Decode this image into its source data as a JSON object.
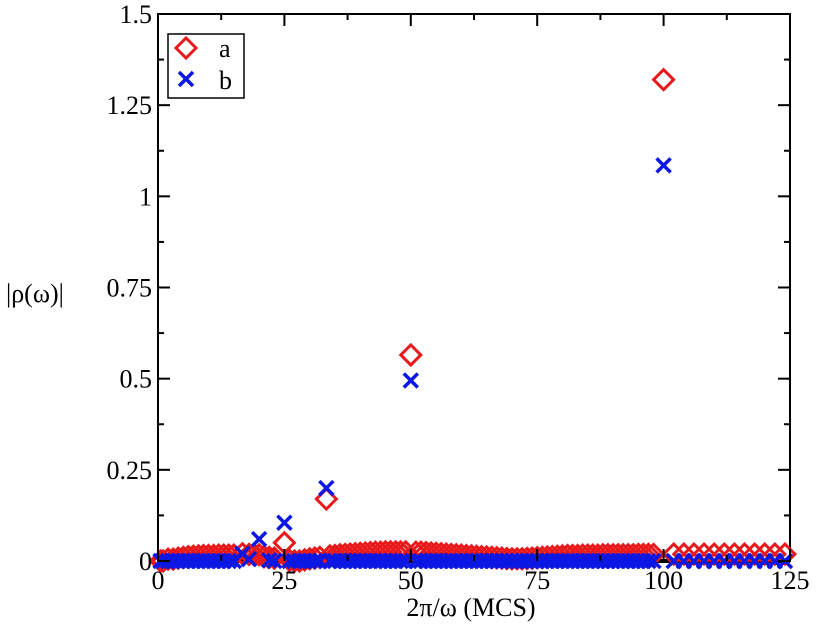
{
  "chart_data": {
    "type": "scatter",
    "title": "",
    "xlabel": "2π/ω (MCS)",
    "ylabel": "|ρ(ω)|",
    "xlim": [
      0,
      125
    ],
    "ylim": [
      0,
      1.5
    ],
    "xticks": [
      0,
      25,
      50,
      75,
      100,
      125
    ],
    "xtick_labels": [
      "0",
      "25",
      "50",
      "75",
      "100",
      "125"
    ],
    "yticks": [
      0,
      0.25,
      0.5,
      0.75,
      1,
      1.25,
      1.5
    ],
    "ytick_labels": [
      "0",
      "0.25",
      "0.5",
      "0.75",
      "1",
      "1.25",
      "1.5"
    ],
    "grid": false,
    "legend_position": "top-left",
    "series": [
      {
        "name": "a",
        "marker": "diamond",
        "color": "#e8191b",
        "points": [
          [
            0.5,
            0.0
          ],
          [
            1,
            0.0
          ],
          [
            2,
            0.005
          ],
          [
            3,
            0.005
          ],
          [
            4,
            0.008
          ],
          [
            5,
            0.01
          ],
          [
            6,
            0.012
          ],
          [
            7,
            0.013
          ],
          [
            8,
            0.014
          ],
          [
            9,
            0.015
          ],
          [
            10,
            0.015
          ],
          [
            11,
            0.015
          ],
          [
            12,
            0.016
          ],
          [
            13,
            0.016
          ],
          [
            14,
            0.016
          ],
          [
            15,
            0.016
          ],
          [
            16.7,
            0.02
          ],
          [
            18,
            0.018
          ],
          [
            19,
            0.017
          ],
          [
            20,
            0.017
          ],
          [
            21,
            0.012
          ],
          [
            22,
            0.01
          ],
          [
            23,
            0.008
          ],
          [
            25,
            0.05
          ],
          [
            26,
            0.002
          ],
          [
            27,
            0.0
          ],
          [
            28,
            0.0
          ],
          [
            29,
            0.003
          ],
          [
            30,
            0.006
          ],
          [
            31,
            0.008
          ],
          [
            32,
            0.01
          ],
          [
            33.3,
            0.17
          ],
          [
            34,
            0.014
          ],
          [
            35,
            0.015
          ],
          [
            36,
            0.017
          ],
          [
            37,
            0.018
          ],
          [
            38,
            0.019
          ],
          [
            39,
            0.02
          ],
          [
            40,
            0.021
          ],
          [
            41,
            0.022
          ],
          [
            42,
            0.023
          ],
          [
            43,
            0.024
          ],
          [
            44,
            0.024
          ],
          [
            45,
            0.025
          ],
          [
            46,
            0.025
          ],
          [
            47,
            0.025
          ],
          [
            48,
            0.025
          ],
          [
            49,
            0.025
          ],
          [
            50,
            0.565
          ],
          [
            51,
            0.024
          ],
          [
            52,
            0.024
          ],
          [
            53,
            0.023
          ],
          [
            54,
            0.022
          ],
          [
            55,
            0.021
          ],
          [
            56,
            0.02
          ],
          [
            57,
            0.019
          ],
          [
            58,
            0.018
          ],
          [
            59,
            0.017
          ],
          [
            60,
            0.016
          ],
          [
            61,
            0.015
          ],
          [
            62,
            0.014
          ],
          [
            63,
            0.013
          ],
          [
            64,
            0.012
          ],
          [
            65,
            0.011
          ],
          [
            66,
            0.01
          ],
          [
            67,
            0.009
          ],
          [
            68,
            0.008
          ],
          [
            69,
            0.007
          ],
          [
            70,
            0.006
          ],
          [
            71,
            0.006
          ],
          [
            72,
            0.006
          ],
          [
            73,
            0.007
          ],
          [
            74,
            0.008
          ],
          [
            75,
            0.009
          ],
          [
            76,
            0.01
          ],
          [
            77,
            0.011
          ],
          [
            78,
            0.012
          ],
          [
            79,
            0.013
          ],
          [
            80,
            0.014
          ],
          [
            81,
            0.015
          ],
          [
            82,
            0.015
          ],
          [
            83,
            0.015
          ],
          [
            84,
            0.016
          ],
          [
            85,
            0.016
          ],
          [
            86,
            0.016
          ],
          [
            87,
            0.016
          ],
          [
            88,
            0.017
          ],
          [
            89,
            0.017
          ],
          [
            90,
            0.017
          ],
          [
            91,
            0.017
          ],
          [
            92,
            0.017
          ],
          [
            93,
            0.017
          ],
          [
            94,
            0.017
          ],
          [
            95,
            0.018
          ],
          [
            96,
            0.018
          ],
          [
            97,
            0.018
          ],
          [
            98,
            0.018
          ],
          [
            100,
            1.32
          ],
          [
            102,
            0.019
          ],
          [
            104,
            0.019
          ],
          [
            106,
            0.019
          ],
          [
            108,
            0.019
          ],
          [
            110,
            0.019
          ],
          [
            112,
            0.019
          ],
          [
            114,
            0.019
          ],
          [
            116,
            0.019
          ],
          [
            118,
            0.019
          ],
          [
            120,
            0.019
          ],
          [
            122,
            0.019
          ],
          [
            124,
            0.019
          ]
        ]
      },
      {
        "name": "b",
        "marker": "x",
        "color": "#0b17e3",
        "points": [
          [
            0.5,
            0.0
          ],
          [
            1,
            0.0
          ],
          [
            2,
            0.0
          ],
          [
            3,
            0.0
          ],
          [
            4,
            0.0
          ],
          [
            5,
            0.0
          ],
          [
            6,
            0.0
          ],
          [
            7,
            0.0
          ],
          [
            8,
            0.0
          ],
          [
            9,
            0.0
          ],
          [
            10,
            0.0
          ],
          [
            11,
            0.0
          ],
          [
            12,
            0.0
          ],
          [
            13,
            0.0
          ],
          [
            14,
            0.0
          ],
          [
            15,
            0.0
          ],
          [
            16.7,
            0.02
          ],
          [
            18,
            0.005
          ],
          [
            20,
            0.06
          ],
          [
            22,
            0.002
          ],
          [
            23,
            0.0
          ],
          [
            25,
            0.105
          ],
          [
            26,
            0.0
          ],
          [
            27,
            0.0
          ],
          [
            28,
            0.0
          ],
          [
            29,
            0.0
          ],
          [
            30,
            0.0
          ],
          [
            31,
            0.0
          ],
          [
            32,
            0.0
          ],
          [
            33.3,
            0.2
          ],
          [
            34,
            0.0
          ],
          [
            35,
            0.0
          ],
          [
            36,
            0.0
          ],
          [
            37,
            0.0
          ],
          [
            38,
            0.0
          ],
          [
            39,
            0.0
          ],
          [
            40,
            0.0
          ],
          [
            41,
            0.0
          ],
          [
            42,
            0.0
          ],
          [
            43,
            0.0
          ],
          [
            44,
            0.0
          ],
          [
            45,
            0.0
          ],
          [
            46,
            0.0
          ],
          [
            47,
            0.0
          ],
          [
            48,
            0.0
          ],
          [
            49,
            0.0
          ],
          [
            50,
            0.495
          ],
          [
            51,
            0.0
          ],
          [
            52,
            0.0
          ],
          [
            53,
            0.0
          ],
          [
            54,
            0.0
          ],
          [
            55,
            0.0
          ],
          [
            56,
            0.0
          ],
          [
            57,
            0.0
          ],
          [
            58,
            0.0
          ],
          [
            59,
            0.0
          ],
          [
            60,
            0.0
          ],
          [
            61,
            0.0
          ],
          [
            62,
            0.0
          ],
          [
            63,
            0.0
          ],
          [
            64,
            0.0
          ],
          [
            65,
            0.0
          ],
          [
            66,
            0.0
          ],
          [
            67,
            0.0
          ],
          [
            68,
            0.0
          ],
          [
            69,
            0.0
          ],
          [
            70,
            0.0
          ],
          [
            71,
            0.0
          ],
          [
            72,
            0.0
          ],
          [
            73,
            0.0
          ],
          [
            74,
            0.0
          ],
          [
            75,
            0.0
          ],
          [
            76,
            0.0
          ],
          [
            77,
            0.0
          ],
          [
            78,
            0.0
          ],
          [
            79,
            0.0
          ],
          [
            80,
            0.0
          ],
          [
            81,
            0.0
          ],
          [
            82,
            0.0
          ],
          [
            83,
            0.0
          ],
          [
            84,
            0.0
          ],
          [
            85,
            0.0
          ],
          [
            86,
            0.0
          ],
          [
            87,
            0.0
          ],
          [
            88,
            0.0
          ],
          [
            89,
            0.0
          ],
          [
            90,
            0.0
          ],
          [
            91,
            0.0
          ],
          [
            92,
            0.0
          ],
          [
            93,
            0.0
          ],
          [
            94,
            0.0
          ],
          [
            95,
            0.0
          ],
          [
            96,
            0.0
          ],
          [
            97,
            0.0
          ],
          [
            98,
            0.0
          ],
          [
            100,
            1.085
          ],
          [
            102,
            0.0
          ],
          [
            104,
            0.0
          ],
          [
            106,
            0.0
          ],
          [
            108,
            0.0
          ],
          [
            110,
            0.0
          ],
          [
            112,
            0.0
          ],
          [
            114,
            0.0
          ],
          [
            116,
            0.0
          ],
          [
            118,
            0.0
          ],
          [
            120,
            0.0
          ],
          [
            122,
            0.0
          ],
          [
            124,
            0.0
          ]
        ]
      }
    ]
  }
}
